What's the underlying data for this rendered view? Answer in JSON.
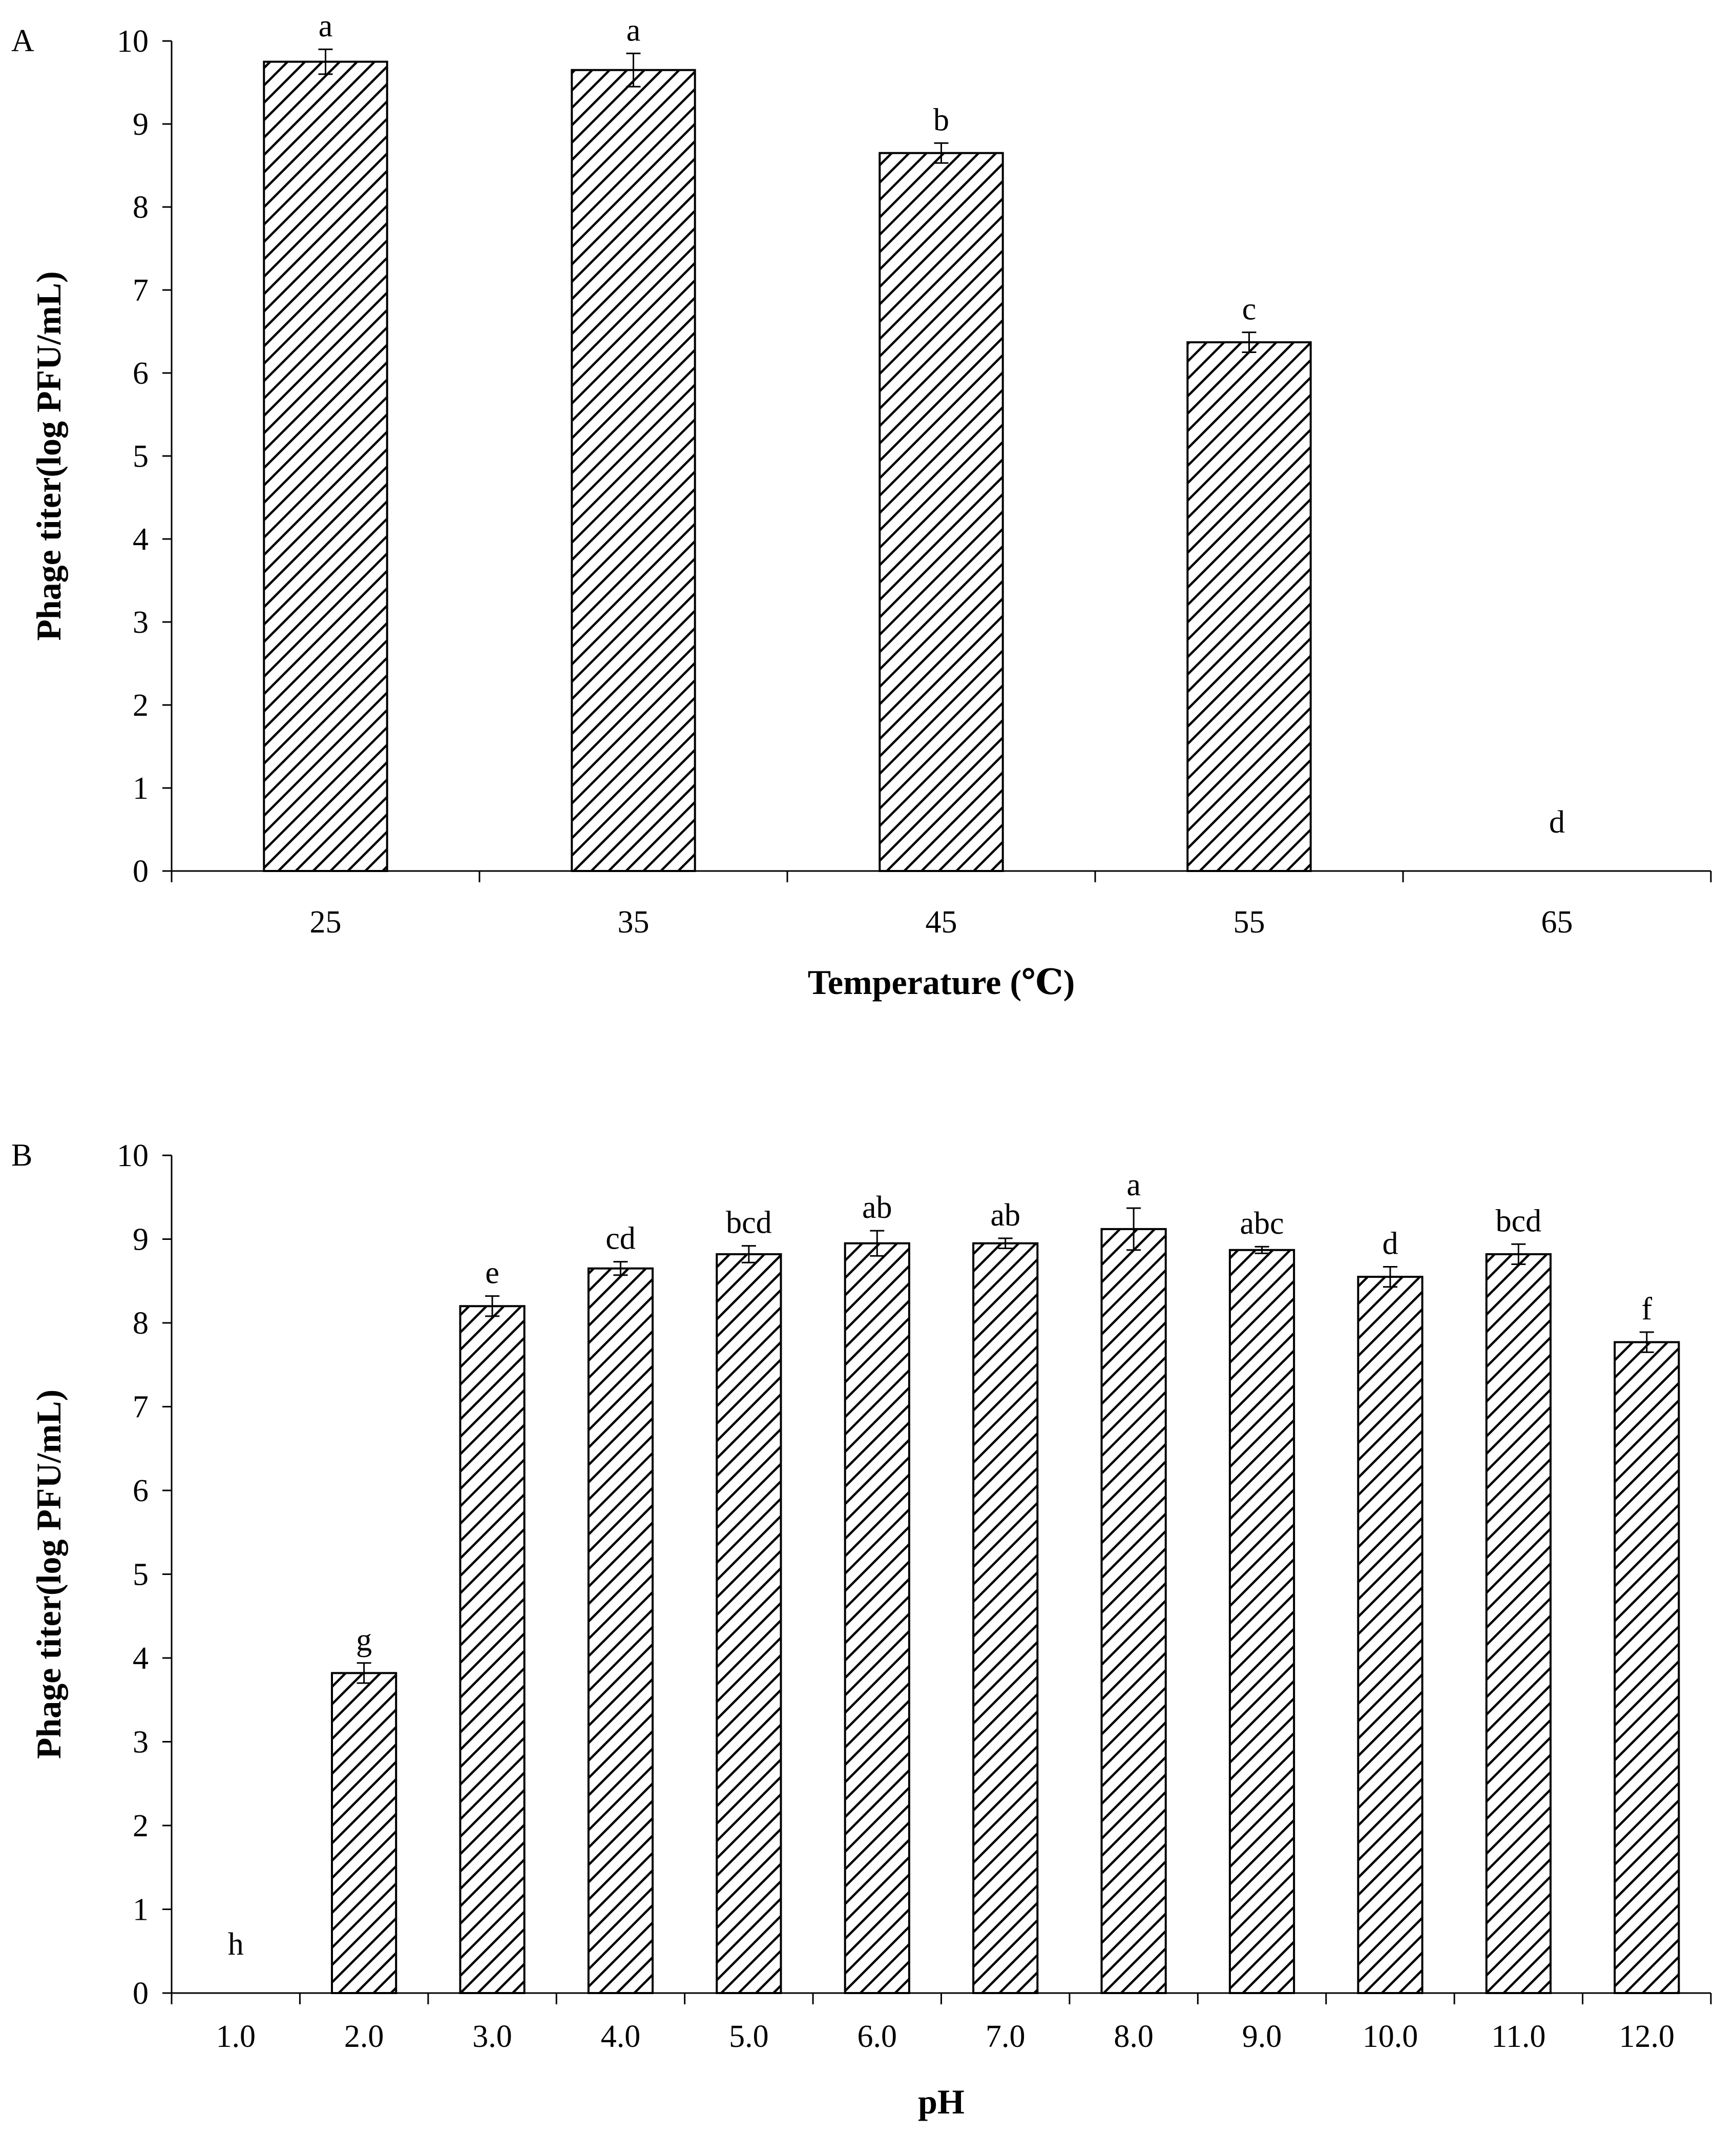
{
  "chart_data": [
    {
      "panel": "A",
      "type": "bar",
      "title": "",
      "xlabel": "Temperature (℃)",
      "ylabel": "Phage titer(log PFU/mL)",
      "ylim": [
        0,
        10
      ],
      "yticks": [
        "0",
        "1",
        "2",
        "3",
        "4",
        "5",
        "6",
        "7",
        "8",
        "9",
        "10"
      ],
      "categories": [
        "25",
        "35",
        "45",
        "55",
        "65"
      ],
      "values": [
        9.75,
        9.65,
        8.65,
        6.37,
        0
      ],
      "errors": [
        0.15,
        0.2,
        0.12,
        0.12,
        0
      ],
      "significance": [
        "a",
        "a",
        "b",
        "c",
        "d"
      ],
      "bar_pattern": "diagonal hatch"
    },
    {
      "panel": "B",
      "type": "bar",
      "title": "",
      "xlabel": "pH",
      "ylabel": "Phage titer(log PFU/mL)",
      "ylim": [
        0,
        10
      ],
      "yticks": [
        "0",
        "1",
        "2",
        "3",
        "4",
        "5",
        "6",
        "7",
        "8",
        "9",
        "10"
      ],
      "categories": [
        "1.0",
        "2.0",
        "3.0",
        "4.0",
        "5.0",
        "6.0",
        "7.0",
        "8.0",
        "9.0",
        "10.0",
        "11.0",
        "12.0"
      ],
      "values": [
        0,
        3.82,
        8.2,
        8.65,
        8.82,
        8.95,
        8.95,
        9.12,
        8.87,
        8.55,
        8.82,
        7.77
      ],
      "errors": [
        0,
        0.12,
        0.12,
        0.08,
        0.1,
        0.15,
        0.06,
        0.25,
        0.04,
        0.12,
        0.12,
        0.12
      ],
      "significance": [
        "h",
        "g",
        "e",
        "cd",
        "bcd",
        "ab",
        "ab",
        "a",
        "abc",
        "d",
        "bcd",
        "f"
      ],
      "bar_pattern": "diagonal hatch"
    }
  ]
}
